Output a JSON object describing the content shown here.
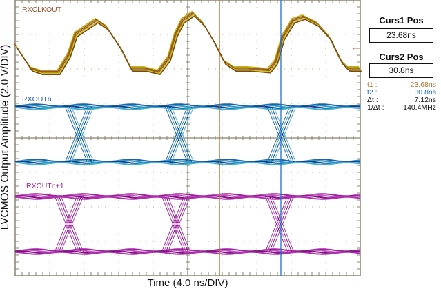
{
  "chart_data": {
    "type": "line",
    "xlabel": "Time (4.0 ns/DIV)",
    "ylabel": "LVCMOS Output Amplitude (2.0 V/DIV)",
    "x_units": "ns",
    "xlim": [
      0,
      40
    ],
    "ylim": [
      0,
      16
    ],
    "x_divisions": 10,
    "y_divisions": 8,
    "grid": true,
    "series": [
      {
        "name": "RXCLKOUT",
        "color": "#b8860b",
        "x": [
          0,
          1.84,
          3.04,
          5.04,
          6.24,
          7.04,
          8.24,
          9.44,
          10.64,
          12.24,
          13.44,
          15.04,
          16.64,
          17.84,
          18.64,
          19.44,
          20.64,
          21.84,
          23.04,
          24.24,
          25.44,
          27.04,
          29.44,
          30.24,
          31.04,
          32.24,
          33.44,
          35.04,
          36.48,
          37.84,
          38.64,
          40
        ],
        "y": [
          13.4,
          12,
          11.8,
          11.8,
          12.8,
          14,
          14.4,
          14.8,
          14.4,
          13.2,
          12,
          12,
          11.8,
          12.6,
          14,
          14.8,
          15.2,
          14.6,
          13.6,
          12.4,
          12,
          12,
          11.9,
          12.4,
          13.8,
          14.8,
          15,
          14.6,
          13.8,
          12.4,
          12,
          12
        ]
      },
      {
        "name": "RXOUTn",
        "color": "#1f5fb0",
        "high": 9.8,
        "low": 6.6,
        "crossings": [
          7.44,
          19.04,
          30.88
        ]
      },
      {
        "name": "RXOUTn+1",
        "color": "#a020a0",
        "high": 4.6,
        "low": 1.4,
        "crossings": [
          6.24,
          18.64,
          30.64
        ]
      }
    ],
    "cursors": [
      {
        "name": "t1",
        "value": 23.68,
        "color": "#c06010"
      },
      {
        "name": "t2",
        "value": 30.8,
        "color": "#1f6fd0"
      }
    ]
  },
  "panel": {
    "curs1_title": "Curs1 Pos",
    "curs1_value": "23.68ns",
    "curs2_title": "Curs2 Pos",
    "curs2_value": "30.8ns",
    "readouts": [
      {
        "key": "t1 :",
        "value": "23.68ns",
        "color": "#c07030"
      },
      {
        "key": "t2 :",
        "value": "30.8ns",
        "color": "#2a6fd0"
      },
      {
        "key": "Δt :",
        "value": "7.12ns",
        "color": "#111111"
      },
      {
        "key": "1/Δt :",
        "value": "140.4MHz",
        "color": "#111111"
      }
    ]
  },
  "ground_marker_icon": "left-arrow-icon"
}
